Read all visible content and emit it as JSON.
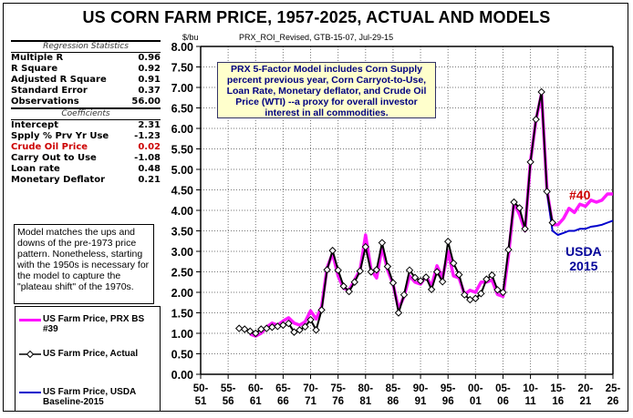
{
  "title": "US CORN FARM PRICE, 1957-2025, ACTUAL AND MODELS",
  "unit_label": "$/bu",
  "subtitle": "PRX_ROI_Revised, GTB-15-07, Jul-29-15",
  "regression": {
    "header": "Regression Statistics",
    "rows": [
      {
        "label": "Multiple R",
        "value": "0.96"
      },
      {
        "label": "R Square",
        "value": "0.92"
      },
      {
        "label": "Adjusted R Square",
        "value": "0.91"
      },
      {
        "label": "Standard Error",
        "value": "0.37"
      },
      {
        "label": "Observations",
        "value": "56.00"
      }
    ],
    "coef_header": "Coefficients",
    "coefficients": [
      {
        "label": "Intercept",
        "value": "2.31"
      },
      {
        "label": "Spply % Prv Yr Use",
        "value": "-1.23"
      },
      {
        "label": "Crude Oil Price",
        "value": "0.02"
      },
      {
        "label": "Carry Out to Use",
        "value": "-1.08"
      },
      {
        "label": "Loan rate",
        "value": "0.48"
      },
      {
        "label": "Monetary Deflator",
        "value": "0.21"
      }
    ]
  },
  "note": "Model matches the ups and downs of the pre-1973 price pattern.  Nonetheless, starting with the 1950s is necessary for the model to capture the \"plateau shift\" of the 1970s.",
  "callout": "PRX 5-Factor Model includes Corn Supply percent previous year, Corn Carryot-to-Use, Loan Rate, Monetary deflator, and Crude Oil Price (WTI) --a proxy for overall investor interest in all commodities.",
  "annotations": {
    "model40": "#40",
    "usda_line1": "USDA",
    "usda_line2": "2015"
  },
  "legend": [
    {
      "label": "US Farm Price, PRX BS #39",
      "color": "#ff00ff"
    },
    {
      "label": "US Farm Price, Actual",
      "color": "#000000"
    },
    {
      "label": "US Farm Price, USDA Baseline-2015",
      "color": "#0000cc"
    }
  ],
  "chart_data": {
    "type": "line",
    "title": "US CORN FARM PRICE, 1957-2025, ACTUAL AND MODELS",
    "xlabel": "",
    "ylabel": "$/bu",
    "ylim": [
      0,
      8
    ],
    "xlim": [
      1950,
      2025
    ],
    "yticks": [
      "0.00",
      "0.50",
      "1.00",
      "1.50",
      "2.00",
      "2.50",
      "3.00",
      "3.50",
      "4.00",
      "4.50",
      "5.00",
      "5.50",
      "6.00",
      "6.50",
      "7.00",
      "7.50",
      "8.00"
    ],
    "xticks": [
      {
        "top": "50-",
        "bottom": "51"
      },
      {
        "top": "55-",
        "bottom": "56"
      },
      {
        "top": "60-",
        "bottom": "61"
      },
      {
        "top": "65-",
        "bottom": "66"
      },
      {
        "top": "70-",
        "bottom": "71"
      },
      {
        "top": "75-",
        "bottom": "76"
      },
      {
        "top": "80-",
        "bottom": "81"
      },
      {
        "top": "85-",
        "bottom": "86"
      },
      {
        "top": "90-",
        "bottom": "91"
      },
      {
        "top": "95-",
        "bottom": "96"
      },
      {
        "top": "00-",
        "bottom": "01"
      },
      {
        "top": "05-",
        "bottom": "06"
      },
      {
        "top": "10-",
        "bottom": "11"
      },
      {
        "top": "15-",
        "bottom": "16"
      },
      {
        "top": "20-",
        "bottom": "21"
      },
      {
        "top": "25-",
        "bottom": "26"
      }
    ],
    "grid": true,
    "legend_position": "left",
    "series": [
      {
        "name": "US Farm Price, Actual",
        "color": "#000000",
        "marker": "diamond",
        "x": [
          1957,
          1958,
          1959,
          1960,
          1961,
          1962,
          1963,
          1964,
          1965,
          1966,
          1967,
          1968,
          1969,
          1970,
          1971,
          1972,
          1973,
          1974,
          1975,
          1976,
          1977,
          1978,
          1979,
          1980,
          1981,
          1982,
          1983,
          1984,
          1985,
          1986,
          1987,
          1988,
          1989,
          1990,
          1991,
          1992,
          1993,
          1994,
          1995,
          1996,
          1997,
          1998,
          1999,
          2000,
          2001,
          2002,
          2003,
          2004,
          2005,
          2006,
          2007,
          2008,
          2009,
          2010,
          2011,
          2012,
          2013,
          2014
        ],
        "values": [
          1.12,
          1.1,
          1.05,
          1.0,
          1.1,
          1.12,
          1.15,
          1.17,
          1.2,
          1.24,
          1.03,
          1.08,
          1.16,
          1.33,
          1.08,
          1.57,
          2.55,
          3.02,
          2.54,
          2.15,
          2.02,
          2.25,
          2.52,
          3.11,
          2.5,
          2.55,
          3.21,
          2.63,
          2.23,
          1.5,
          1.94,
          2.54,
          2.36,
          2.28,
          2.37,
          2.07,
          2.5,
          2.26,
          3.24,
          2.71,
          2.43,
          1.94,
          1.82,
          1.85,
          1.97,
          2.32,
          2.42,
          2.06,
          2.0,
          3.04,
          4.2,
          4.06,
          3.55,
          5.18,
          6.22,
          6.89,
          4.46,
          3.7
        ]
      },
      {
        "name": "US Farm Price, PRX BS #39",
        "color": "#ff00ff",
        "x": [
          1959,
          1960,
          1961,
          1962,
          1963,
          1964,
          1965,
          1966,
          1967,
          1968,
          1969,
          1970,
          1971,
          1972,
          1973,
          1974,
          1975,
          1976,
          1977,
          1978,
          1979,
          1980,
          1981,
          1982,
          1983,
          1984,
          1985,
          1986,
          1987,
          1988,
          1989,
          1990,
          1991,
          1992,
          1993,
          1994,
          1995,
          1996,
          1997,
          1998,
          1999,
          2000,
          2001,
          2002,
          2003,
          2004,
          2005,
          2006,
          2007,
          2008,
          2009,
          2010,
          2011,
          2012,
          2013,
          2014,
          2015,
          2016,
          2017,
          2018,
          2019,
          2020,
          2021,
          2022,
          2023,
          2024,
          2025
        ],
        "values": [
          0.98,
          0.93,
          1.0,
          1.15,
          1.25,
          1.2,
          1.3,
          1.38,
          1.25,
          1.2,
          1.28,
          1.55,
          1.35,
          1.65,
          2.6,
          2.95,
          2.4,
          2.1,
          2.05,
          2.3,
          2.55,
          3.4,
          2.55,
          2.35,
          3.1,
          2.55,
          2.2,
          1.6,
          1.9,
          2.4,
          2.25,
          2.2,
          2.4,
          2.15,
          2.65,
          2.35,
          3.0,
          2.4,
          2.35,
          1.95,
          2.05,
          2.0,
          2.25,
          2.25,
          2.3,
          1.95,
          1.9,
          2.9,
          4.2,
          3.9,
          3.5,
          5.2,
          6.2,
          6.85,
          4.5,
          3.65,
          3.65,
          3.8,
          4.05,
          3.95,
          4.15,
          4.1,
          4.25,
          4.2,
          4.25,
          4.4,
          4.4
        ]
      },
      {
        "name": "US Farm Price, USDA Baseline-2015",
        "color": "#0000cc",
        "x": [
          2013,
          2014,
          2015,
          2016,
          2017,
          2018,
          2019,
          2020,
          2021,
          2022,
          2023,
          2024,
          2025
        ],
        "values": [
          4.46,
          3.5,
          3.4,
          3.45,
          3.5,
          3.5,
          3.55,
          3.55,
          3.6,
          3.62,
          3.65,
          3.7,
          3.75
        ]
      }
    ]
  }
}
